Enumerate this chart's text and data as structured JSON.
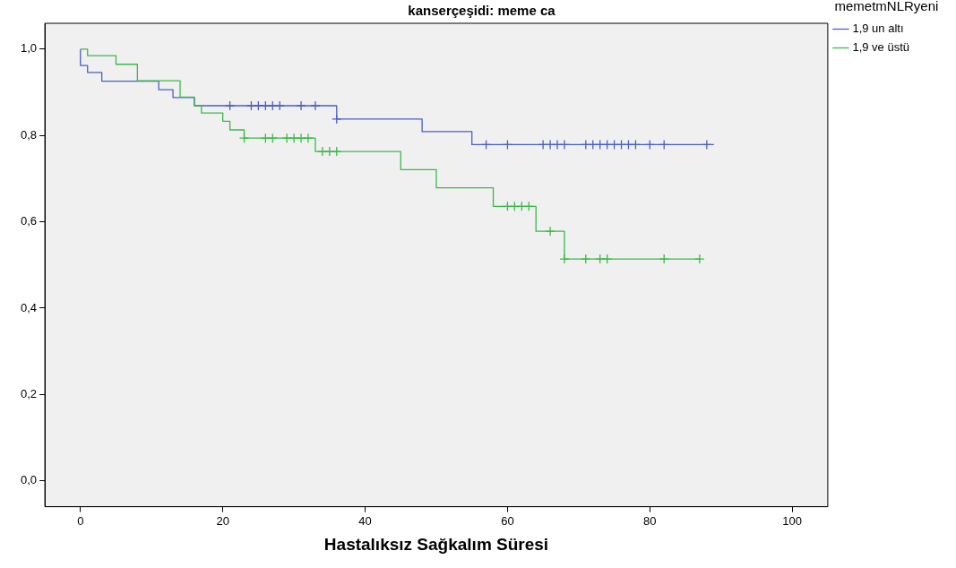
{
  "chart_data": {
    "type": "step",
    "title": "kanserçeşidi: meme ca",
    "xlabel": "Hastalıksız Sağkalım Süresi",
    "legend_title": "memetmNLRyeni",
    "series": [
      {
        "name": "1,9 un altı",
        "color": "#4a5fc1",
        "x": [
          0,
          0,
          1,
          3,
          11,
          13,
          16,
          36,
          48,
          55,
          89
        ],
        "values": [
          1,
          0.962,
          0.946,
          0.926,
          0.906,
          0.888,
          0.869,
          0.838,
          0.809,
          0.779,
          0.779
        ]
      },
      {
        "name": "1,9 ve üstü",
        "color": "#3cb84a",
        "x": [
          0,
          1,
          5,
          8,
          14,
          16,
          17,
          20,
          21,
          23,
          33,
          45,
          50,
          58,
          64,
          68,
          87
        ],
        "values": [
          1,
          0.985,
          0.965,
          0.927,
          0.889,
          0.869,
          0.852,
          0.833,
          0.813,
          0.794,
          0.763,
          0.721,
          0.679,
          0.636,
          0.578,
          0.514,
          0.514
        ]
      },
      {
        "type": "scatter",
        "marker": "cross",
        "color": "#4a5fc1",
        "x": [
          21,
          24,
          25,
          26,
          27,
          28,
          31,
          33,
          36,
          57,
          60,
          65,
          66,
          67,
          68,
          71,
          72,
          73,
          74,
          75,
          76,
          77,
          78,
          80,
          82,
          88
        ],
        "values": [
          0.869,
          0.869,
          0.869,
          0.869,
          0.869,
          0.869,
          0.869,
          0.869,
          0.838,
          0.779,
          0.779,
          0.779,
          0.779,
          0.779,
          0.779,
          0.779,
          0.779,
          0.779,
          0.779,
          0.779,
          0.779,
          0.779,
          0.779,
          0.779,
          0.779,
          0.779
        ]
      },
      {
        "type": "scatter",
        "marker": "cross",
        "color": "#3cb84a",
        "x": [
          23,
          26,
          27,
          29,
          30,
          31,
          32,
          34,
          35,
          36,
          60,
          61,
          62,
          63,
          66,
          68,
          71,
          73,
          74,
          82,
          87
        ],
        "values": [
          0.794,
          0.794,
          0.794,
          0.794,
          0.794,
          0.794,
          0.794,
          0.763,
          0.763,
          0.763,
          0.636,
          0.636,
          0.636,
          0.636,
          0.578,
          0.514,
          0.514,
          0.514,
          0.514,
          0.514,
          0.514
        ]
      }
    ],
    "xlim": [
      -5,
      105
    ],
    "xticks": [
      0,
      20,
      40,
      60,
      80,
      100
    ],
    "ylim": [
      -0.06,
      1.06
    ],
    "yticks": [
      {
        "value": 0,
        "label": "0,0"
      },
      {
        "value": 0.2,
        "label": "0,2"
      },
      {
        "value": 0.4,
        "label": "0,4"
      },
      {
        "value": 0.6,
        "label": "0,6"
      },
      {
        "value": 0.8,
        "label": "0,8"
      },
      {
        "value": 1,
        "label": "1,0"
      }
    ],
    "grid": false,
    "legend": "top right"
  }
}
